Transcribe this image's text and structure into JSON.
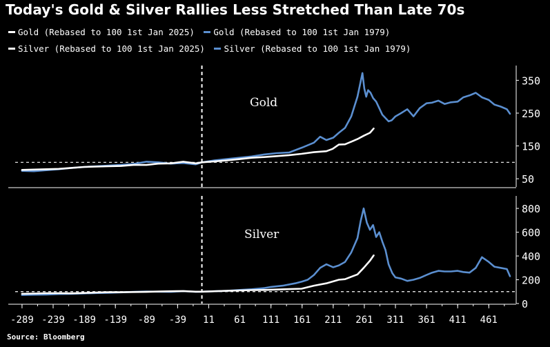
{
  "title": "Today's Gold & Silver Rallies Less Stretched Than Late 70s",
  "source": "Source: Bloomberg",
  "colors": {
    "white_series": "#ffffff",
    "blue_series": "#5b8fd0",
    "background": "#000000"
  },
  "legend": [
    {
      "label": "Gold (Rebased to 100 1st Jan 2025)",
      "color": "#ffffff"
    },
    {
      "label": "Gold (Rebased to 100 1st Jan 1979)",
      "color": "#5b8fd0"
    },
    {
      "label": "Silver (Rebased to 100 1st Jan 2025)",
      "color": "#ffffff"
    },
    {
      "label": "Silver (Rebased to 100 1st Jan 1979)",
      "color": "#5b8fd0"
    }
  ],
  "chart_data": [
    {
      "type": "line",
      "panel_label": "Gold",
      "xlim": [
        -300,
        505
      ],
      "ylim": [
        25,
        395
      ],
      "yticks": [
        50,
        150,
        250,
        350
      ],
      "reference_line": 100,
      "vertical_marker_x": 0,
      "series": [
        {
          "name": "Gold (Rebased to 100 1st Jan 1979)",
          "color": "#5b8fd0",
          "x": [
            -289,
            -270,
            -250,
            -230,
            -210,
            -189,
            -170,
            -150,
            -130,
            -110,
            -89,
            -70,
            -50,
            -30,
            -10,
            0,
            20,
            40,
            60,
            80,
            100,
            120,
            140,
            161,
            170,
            180,
            190,
            200,
            211,
            220,
            230,
            240,
            250,
            255,
            258,
            261,
            264,
            267,
            271,
            275,
            280,
            290,
            300,
            305,
            311,
            320,
            330,
            340,
            350,
            361,
            370,
            380,
            390,
            400,
            411,
            420,
            430,
            440,
            450,
            461,
            470,
            480,
            490,
            495
          ],
          "y": [
            74,
            73,
            76,
            79,
            83,
            86,
            88,
            90,
            92,
            95,
            102,
            100,
            96,
            98,
            94,
            100,
            106,
            110,
            114,
            118,
            124,
            128,
            130,
            145,
            152,
            160,
            178,
            168,
            175,
            190,
            205,
            240,
            300,
            345,
            372,
            325,
            300,
            320,
            312,
            296,
            285,
            245,
            225,
            228,
            240,
            250,
            262,
            240,
            265,
            280,
            282,
            288,
            278,
            283,
            285,
            298,
            304,
            312,
            298,
            290,
            276,
            270,
            262,
            248
          ]
        },
        {
          "name": "Gold (Rebased to 100 1st Jan 2025)",
          "color": "#ffffff",
          "x": [
            -289,
            -270,
            -250,
            -230,
            -210,
            -189,
            -170,
            -150,
            -130,
            -110,
            -89,
            -70,
            -50,
            -30,
            -10,
            0,
            20,
            40,
            61,
            80,
            100,
            120,
            140,
            160,
            180,
            200,
            210,
            220,
            230,
            240,
            250,
            260,
            270,
            276
          ],
          "y": [
            77,
            78,
            79,
            80,
            83,
            86,
            87,
            88,
            89,
            92,
            92,
            96,
            97,
            102,
            97,
            100,
            103,
            106,
            110,
            114,
            116,
            119,
            122,
            126,
            131,
            134,
            141,
            154,
            155,
            163,
            171,
            181,
            190,
            203
          ]
        }
      ]
    },
    {
      "type": "line",
      "panel_label": "Silver",
      "xlim": [
        -300,
        505
      ],
      "ylim": [
        0,
        905
      ],
      "yticks": [
        0,
        200,
        400,
        600,
        800
      ],
      "reference_line": 100,
      "vertical_marker_x": 0,
      "series": [
        {
          "name": "Silver (Rebased to 100 1st Jan 1979)",
          "color": "#5b8fd0",
          "x": [
            -289,
            -270,
            -250,
            -230,
            -210,
            -189,
            -170,
            -150,
            -130,
            -110,
            -89,
            -70,
            -50,
            -30,
            -10,
            0,
            20,
            40,
            61,
            80,
            100,
            111,
            130,
            150,
            161,
            170,
            180,
            190,
            200,
            211,
            220,
            230,
            240,
            250,
            255,
            260,
            265,
            270,
            275,
            280,
            285,
            290,
            295,
            300,
            306,
            311,
            320,
            330,
            340,
            350,
            361,
            370,
            380,
            390,
            400,
            411,
            420,
            430,
            440,
            450,
            461,
            470,
            480,
            490,
            495
          ],
          "y": [
            72,
            74,
            76,
            80,
            82,
            85,
            88,
            90,
            94,
            98,
            101,
            100,
            98,
            104,
            99,
            100,
            103,
            107,
            114,
            120,
            130,
            140,
            150,
            170,
            185,
            200,
            240,
            300,
            330,
            305,
            320,
            350,
            430,
            550,
            690,
            800,
            680,
            620,
            660,
            560,
            600,
            520,
            450,
            330,
            255,
            220,
            210,
            190,
            200,
            215,
            240,
            260,
            275,
            270,
            270,
            275,
            265,
            260,
            300,
            390,
            350,
            310,
            300,
            290,
            230
          ]
        },
        {
          "name": "Silver (Rebased to 100 1st Jan 2025)",
          "color": "#ffffff",
          "x": [
            -289,
            -270,
            -250,
            -230,
            -210,
            -189,
            -170,
            -150,
            -130,
            -110,
            -89,
            -70,
            -50,
            -30,
            -10,
            0,
            20,
            40,
            61,
            80,
            100,
            120,
            140,
            160,
            180,
            200,
            210,
            220,
            230,
            240,
            250,
            260,
            270,
            276
          ],
          "y": [
            82,
            84,
            87,
            87,
            86,
            89,
            92,
            95,
            95,
            97,
            98,
            101,
            103,
            105,
            100,
            100,
            103,
            107,
            110,
            113,
            114,
            118,
            121,
            125,
            150,
            170,
            185,
            200,
            205,
            225,
            245,
            300,
            360,
            405
          ]
        }
      ]
    }
  ],
  "x_axis": {
    "ticks": [
      -289,
      -239,
      -189,
      -139,
      -89,
      -39,
      11,
      61,
      111,
      161,
      211,
      261,
      311,
      361,
      411,
      461
    ]
  }
}
